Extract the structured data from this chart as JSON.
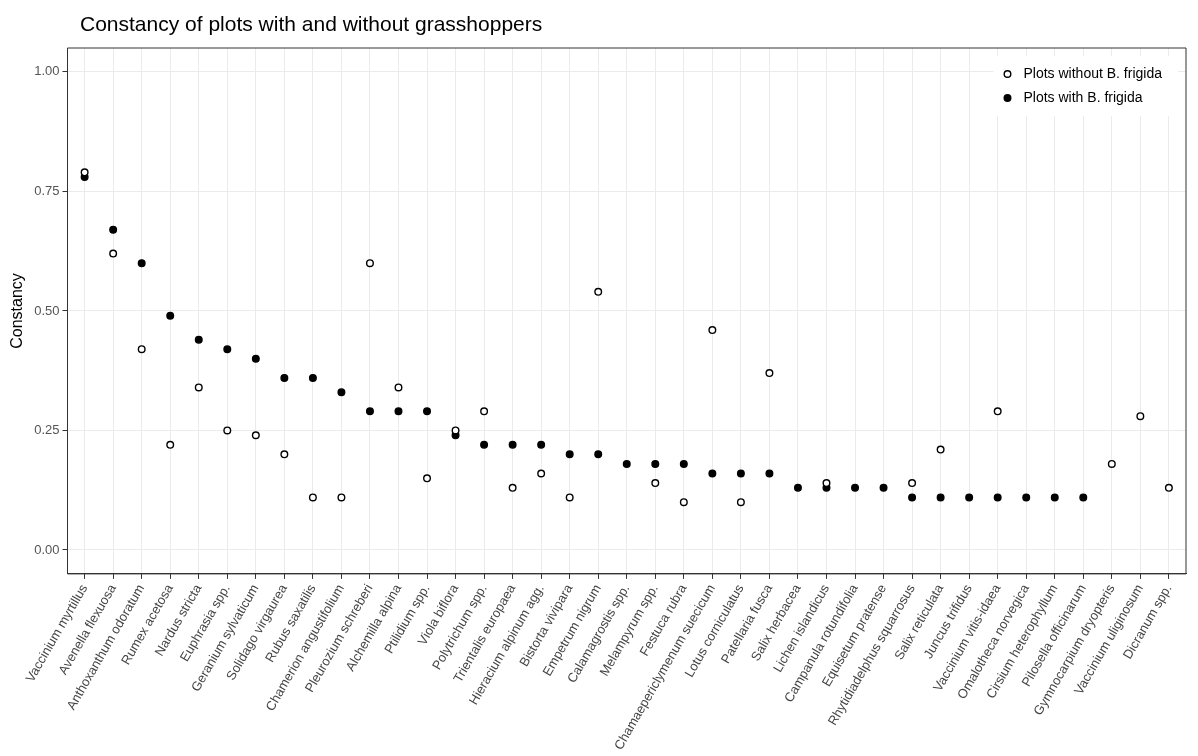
{
  "chart_data": {
    "type": "scatter",
    "title": "Constancy of plots with and without grasshoppers",
    "ylabel": "Constancy",
    "categories": [
      "Vaccinium myrtillus",
      "Avenella flexuosa",
      "Anthoxanthum odoratum",
      "Rumex acetosa",
      "Nardus stricta",
      "Euphrasia spp.",
      "Geranium sylvaticum",
      "Solidago virgaurea",
      "Rubus saxatilis",
      "Chamerion angustifolium",
      "Pleurozium schreberi",
      "Alchemilla alpina",
      "Ptilidium spp.",
      "Viola biflora",
      "Polytrichum spp.",
      "Trientalis europaea",
      "Hieracium alpinum agg.",
      "Bistorta vivipara",
      "Empetrum nigrum",
      "Calamagrostis spp.",
      "Melampyrum spp.",
      "Festuca rubra",
      "Chamaepericlymenum suecicum",
      "Lotus corniculatus",
      "Patellaria fusca",
      "Salix herbacea",
      "Lichen islandicus",
      "Campanula rotundifolia",
      "Equisetum pratense",
      "Rhytidiadelphus squarrosus",
      "Salix reticulata",
      "Juncus trifidus",
      "Vaccinium vitis-idaea",
      "Omalotheca norvegica",
      "Cirsium heterophyllum",
      "Pilosella officinarum",
      "Gymnocarpium dryopteris",
      "Vaccinium uliginosum",
      "Dicranum spp."
    ],
    "series": [
      {
        "name": "Plots without B. frigida",
        "color": "#000000",
        "values": [
          0.79,
          0.62,
          0.42,
          0.22,
          0.34,
          0.25,
          0.24,
          0.2,
          0.11,
          0.11,
          0.6,
          0.34,
          0.15,
          0.25,
          0.29,
          0.13,
          0.16,
          0.11,
          0.54,
          null,
          0.14,
          0.1,
          0.46,
          0.1,
          0.37,
          null,
          0.14,
          null,
          null,
          0.14,
          0.21,
          null,
          0.29,
          null,
          null,
          null,
          0.18,
          0.28,
          0.13
        ]
      },
      {
        "name": "Plots with B. frigida",
        "color": "#000000",
        "values": [
          0.78,
          0.67,
          0.6,
          0.49,
          0.44,
          0.42,
          0.4,
          0.36,
          0.36,
          0.33,
          0.29,
          0.29,
          0.29,
          0.24,
          0.22,
          0.22,
          0.22,
          0.2,
          0.2,
          0.18,
          0.18,
          0.18,
          0.16,
          0.16,
          0.16,
          0.13,
          0.13,
          0.13,
          0.13,
          0.11,
          0.11,
          0.11,
          0.11,
          0.11,
          0.11,
          0.11,
          null,
          null,
          null
        ]
      }
    ],
    "ylim": [
      -0.05,
      1.05
    ],
    "yticks": [
      {
        "value": 0,
        "label": "0.00"
      },
      {
        "value": 0.25,
        "label": "0.25"
      },
      {
        "value": 0.5,
        "label": "0.50"
      },
      {
        "value": 0.75,
        "label": "0.75"
      },
      {
        "value": 1,
        "label": "1.00"
      }
    ],
    "grid": true,
    "legend": "top right",
    "marker": "circle"
  }
}
